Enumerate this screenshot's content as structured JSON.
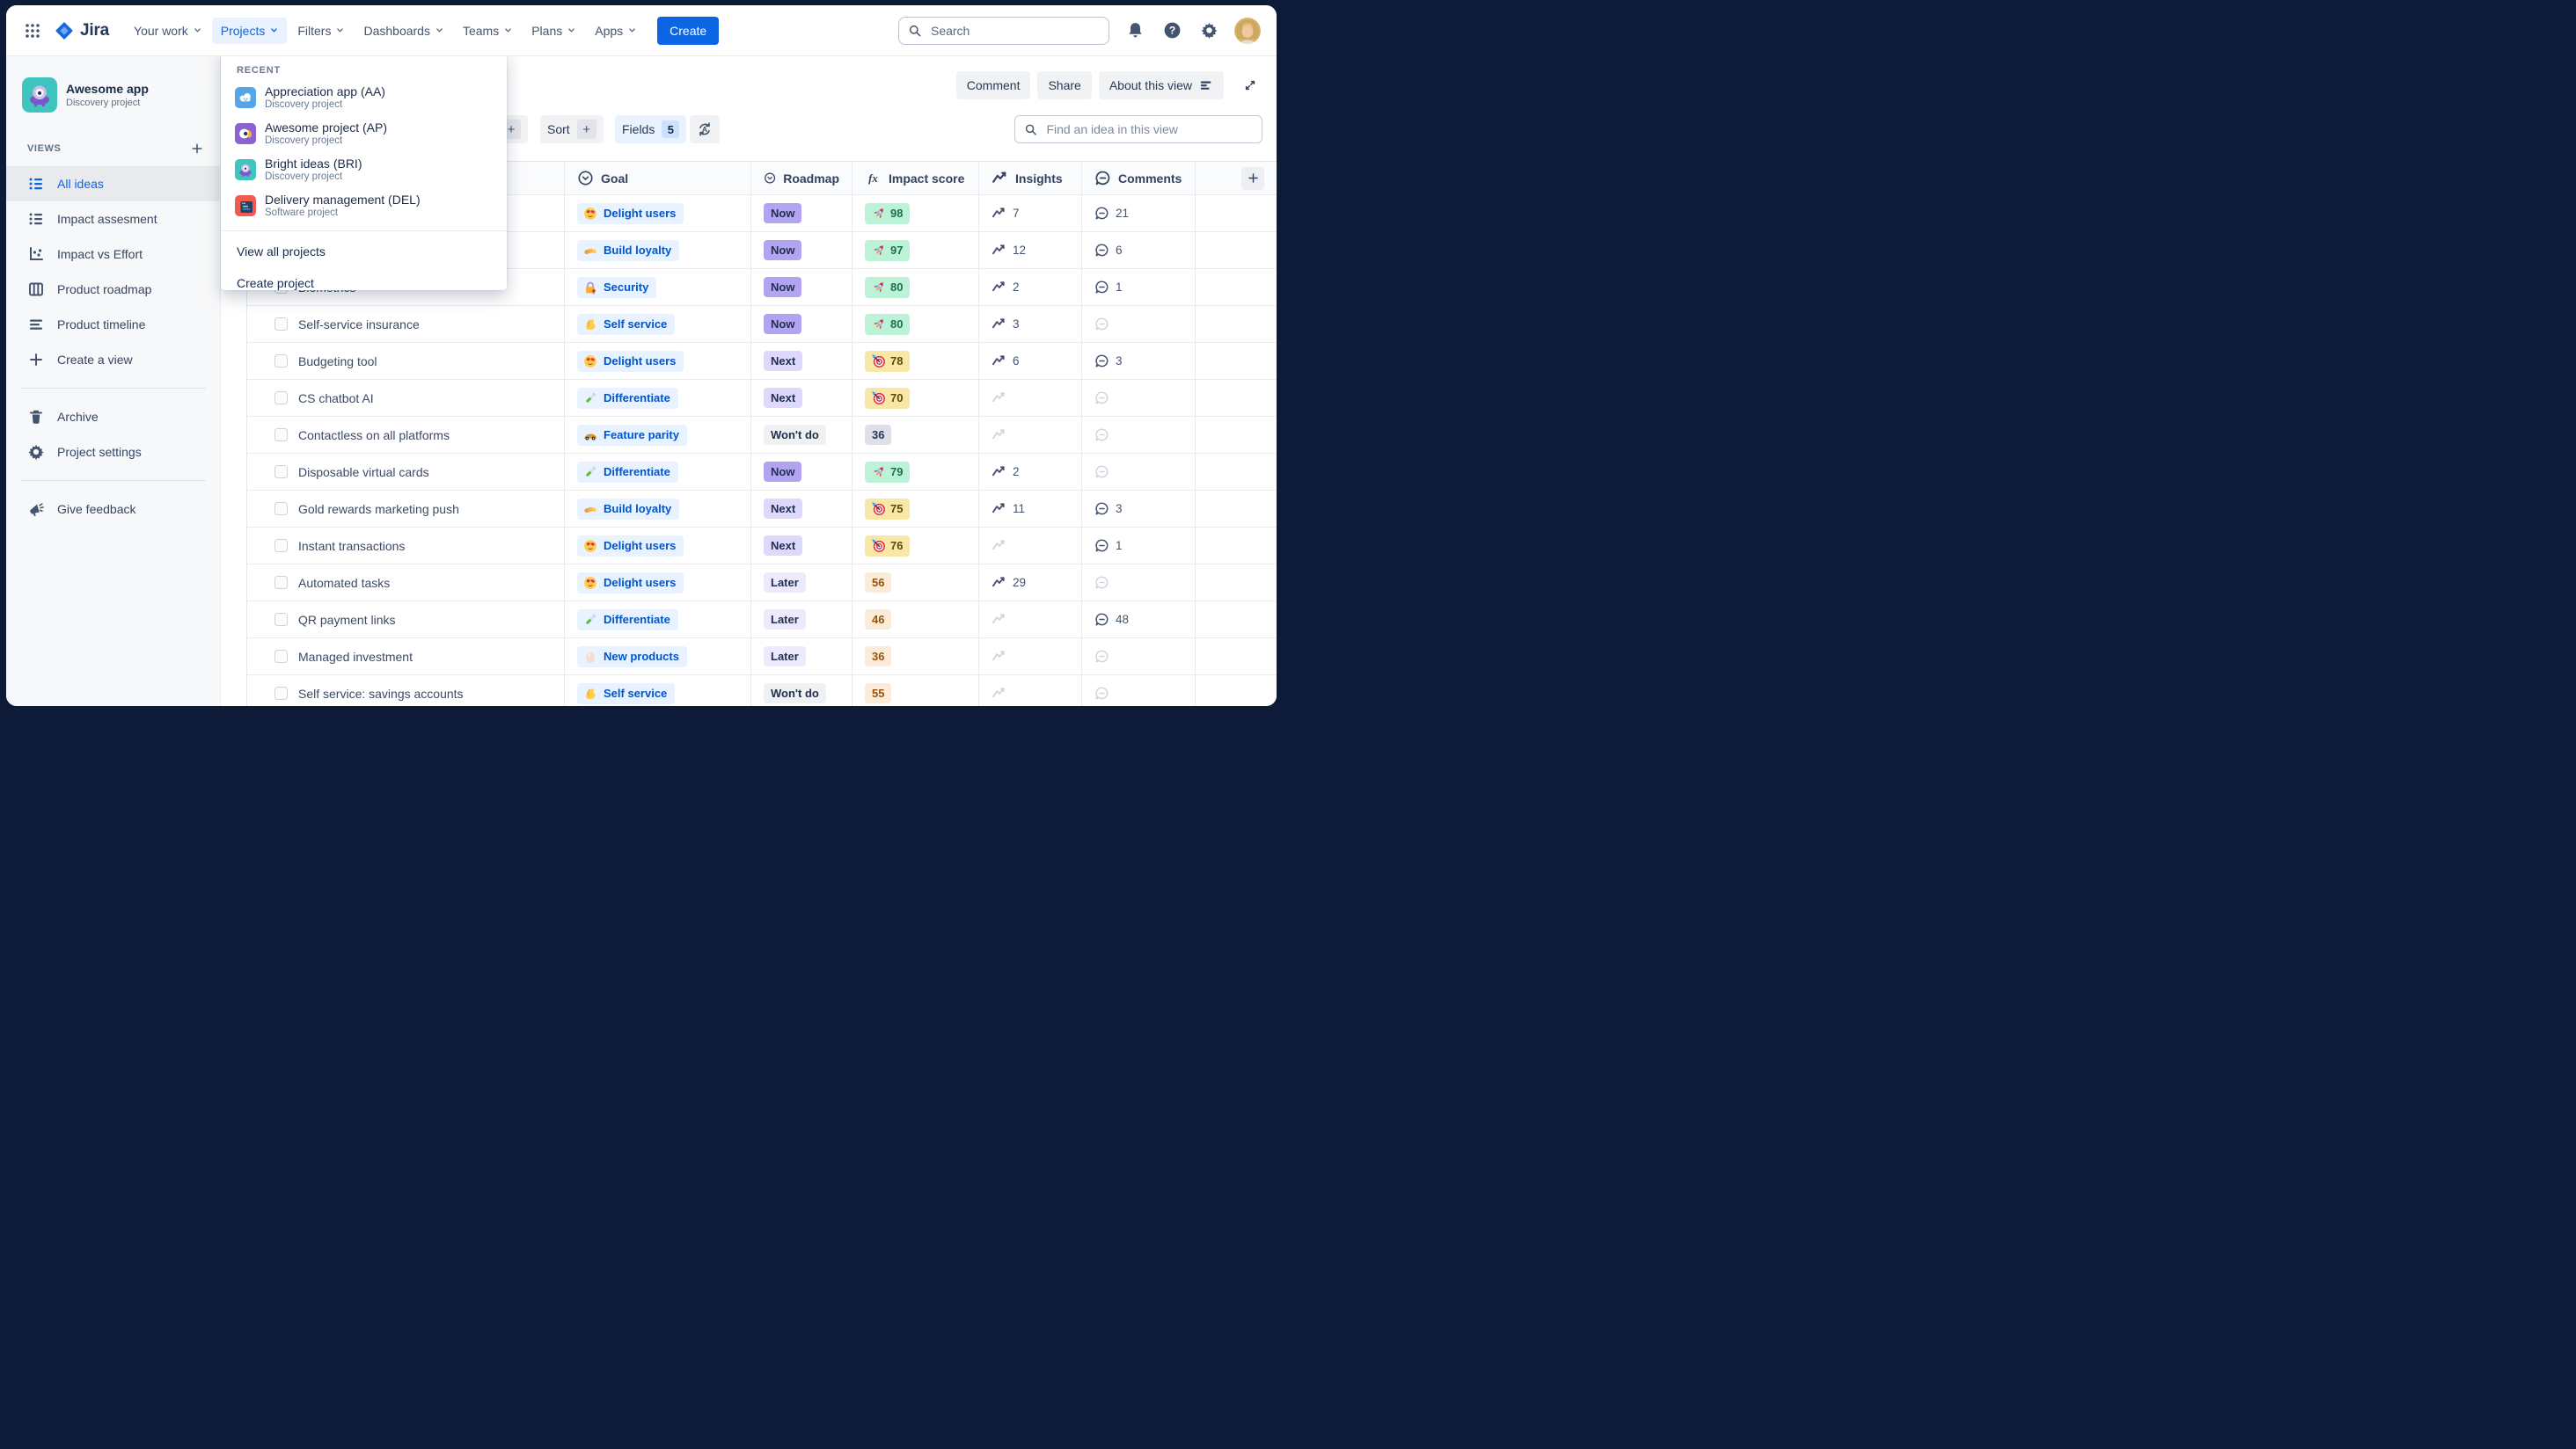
{
  "topbar": {
    "logo_text": "Jira",
    "nav": [
      {
        "label": "Your work",
        "active": false
      },
      {
        "label": "Projects",
        "active": true
      },
      {
        "label": "Filters",
        "active": false
      },
      {
        "label": "Dashboards",
        "active": false
      },
      {
        "label": "Teams",
        "active": false
      },
      {
        "label": "Plans",
        "active": false
      },
      {
        "label": "Apps",
        "active": false
      }
    ],
    "create_label": "Create",
    "search_placeholder": "Search",
    "icons": [
      "apps-grid-icon",
      "notifications-bell-icon",
      "help-icon",
      "settings-gear-icon",
      "user-avatar"
    ]
  },
  "projects_menu": {
    "section_label": "RECENT",
    "items": [
      {
        "name": "Appreciation app (AA)",
        "type": "Discovery project",
        "icon": "appreciation-app-icon"
      },
      {
        "name": "Awesome project (AP)",
        "type": "Discovery project",
        "icon": "awesome-project-icon"
      },
      {
        "name": "Bright ideas (BRI)",
        "type": "Discovery project",
        "icon": "bright-ideas-icon"
      },
      {
        "name": "Delivery management (DEL)",
        "type": "Software project",
        "icon": "delivery-management-icon"
      }
    ],
    "footer_items": [
      "View all projects",
      "Create project"
    ]
  },
  "sidebar": {
    "project": {
      "name": "Awesome app",
      "type": "Discovery project",
      "icon": "alien-app-icon"
    },
    "views_label": "VIEWS",
    "views": [
      {
        "label": "All ideas",
        "icon": "list",
        "active": true
      },
      {
        "label": "Impact assesment",
        "icon": "list",
        "active": false
      },
      {
        "label": "Impact vs Effort",
        "icon": "scatter",
        "active": false
      },
      {
        "label": "Product roadmap",
        "icon": "board",
        "active": false
      },
      {
        "label": "Product timeline",
        "icon": "timeline",
        "active": false
      },
      {
        "label": "Create a view",
        "icon": "plus",
        "active": false
      }
    ],
    "tools": [
      {
        "label": "Archive",
        "icon": "trash"
      },
      {
        "label": "Project settings",
        "icon": "gear"
      }
    ],
    "feedback_label": "Give feedback"
  },
  "view_header": {
    "buttons": [
      "Comment",
      "Share",
      "About this view"
    ]
  },
  "toolbar": {
    "partial_chip": "+",
    "sort_label": "Sort",
    "sort_plus": "+",
    "fields_label": "Fields",
    "fields_count": "5",
    "find_placeholder": "Find an idea in this view"
  },
  "table": {
    "columns": [
      {
        "label": "",
        "icon": null
      },
      {
        "label": "Goal",
        "icon": "chevron-circle"
      },
      {
        "label": "Roadmap",
        "icon": "chevron-circle"
      },
      {
        "label": "Impact score",
        "icon": "fx"
      },
      {
        "label": "Insights",
        "icon": "trend"
      },
      {
        "label": "Comments",
        "icon": "comment"
      },
      {
        "label": "+",
        "icon": "plus"
      }
    ],
    "rows": [
      {
        "name": "",
        "goal": {
          "icon": "delight",
          "label": "Delight users"
        },
        "roadmap": {
          "label": "Now",
          "variant": "now"
        },
        "impact": {
          "icon": "rocket",
          "value": "98",
          "variant": "green"
        },
        "insights": "7",
        "comments": "21"
      },
      {
        "name": "",
        "goal": {
          "icon": "handshake",
          "label": "Build loyalty"
        },
        "roadmap": {
          "label": "Now",
          "variant": "now"
        },
        "impact": {
          "icon": "rocket",
          "value": "97",
          "variant": "green"
        },
        "insights": "12",
        "comments": "6"
      },
      {
        "name": "Biometrics",
        "goal": {
          "icon": "lock",
          "label": "Security"
        },
        "roadmap": {
          "label": "Now",
          "variant": "now"
        },
        "impact": {
          "icon": "rocket",
          "value": "80",
          "variant": "green"
        },
        "insights": "2",
        "comments": "1"
      },
      {
        "name": "Self-service insurance",
        "goal": {
          "icon": "biceps",
          "label": "Self service"
        },
        "roadmap": {
          "label": "Now",
          "variant": "now"
        },
        "impact": {
          "icon": "rocket",
          "value": "80",
          "variant": "green"
        },
        "insights": "3",
        "comments": null
      },
      {
        "name": "Budgeting tool",
        "goal": {
          "icon": "delight",
          "label": "Delight users"
        },
        "roadmap": {
          "label": "Next",
          "variant": "next"
        },
        "impact": {
          "icon": "target",
          "value": "78",
          "variant": "yellow"
        },
        "insights": "6",
        "comments": "3"
      },
      {
        "name": "CS chatbot AI",
        "goal": {
          "icon": "testtube",
          "label": "Differentiate"
        },
        "roadmap": {
          "label": "Next",
          "variant": "next"
        },
        "impact": {
          "icon": "target",
          "value": "70",
          "variant": "yellow"
        },
        "insights": null,
        "comments": null
      },
      {
        "name": "Contactless on all platforms",
        "goal": {
          "icon": "racecar",
          "label": "Feature parity"
        },
        "roadmap": {
          "label": "Won't do",
          "variant": "wontdo"
        },
        "impact": {
          "icon": null,
          "value": "36",
          "variant": "gray"
        },
        "insights": null,
        "comments": null
      },
      {
        "name": "Disposable virtual cards",
        "goal": {
          "icon": "testtube",
          "label": "Differentiate"
        },
        "roadmap": {
          "label": "Now",
          "variant": "now"
        },
        "impact": {
          "icon": "rocket",
          "value": "79",
          "variant": "green"
        },
        "insights": "2",
        "comments": null
      },
      {
        "name": "Gold rewards marketing push",
        "goal": {
          "icon": "handshake",
          "label": "Build loyalty"
        },
        "roadmap": {
          "label": "Next",
          "variant": "next"
        },
        "impact": {
          "icon": "target",
          "value": "75",
          "variant": "yellow"
        },
        "insights": "11",
        "comments": "3"
      },
      {
        "name": "Instant transactions",
        "goal": {
          "icon": "delight",
          "label": "Delight users"
        },
        "roadmap": {
          "label": "Next",
          "variant": "next"
        },
        "impact": {
          "icon": "target",
          "value": "76",
          "variant": "yellow"
        },
        "insights": null,
        "comments": "1"
      },
      {
        "name": "Automated tasks",
        "goal": {
          "icon": "delight",
          "label": "Delight users"
        },
        "roadmap": {
          "label": "Later",
          "variant": "later"
        },
        "impact": {
          "icon": null,
          "value": "56",
          "variant": "peach"
        },
        "insights": "29",
        "comments": null
      },
      {
        "name": "QR payment links",
        "goal": {
          "icon": "testtube",
          "label": "Differentiate"
        },
        "roadmap": {
          "label": "Later",
          "variant": "later"
        },
        "impact": {
          "icon": null,
          "value": "46",
          "variant": "peach"
        },
        "insights": null,
        "comments": "48"
      },
      {
        "name": "Managed investment",
        "goal": {
          "icon": "egg",
          "label": "New products"
        },
        "roadmap": {
          "label": "Later",
          "variant": "later"
        },
        "impact": {
          "icon": null,
          "value": "36",
          "variant": "peach"
        },
        "insights": null,
        "comments": null
      },
      {
        "name": "Self service: savings accounts",
        "goal": {
          "icon": "biceps",
          "label": "Self service"
        },
        "roadmap": {
          "label": "Won't do",
          "variant": "wontdo"
        },
        "impact": {
          "icon": null,
          "value": "55",
          "variant": "peach"
        },
        "insights": null,
        "comments": null
      }
    ]
  },
  "colors": {
    "accent_blue": "#0C66E4",
    "frame": "#0D1B38",
    "sidebar_bg": "#F7F8F9",
    "goal_chip_bg": "#E9F2FF",
    "goal_chip_text": "#0055CC",
    "roadmap_now": "#B3A4F3",
    "roadmap_next": "#DFD8FD",
    "roadmap_later": "#EEE9FD",
    "roadmap_wontdo": "#F0F1F3",
    "impact_green_bg": "#BCF2D7",
    "impact_yellow_bg": "#F8E7A6",
    "impact_peach_bg": "#FBEBD9",
    "impact_gray_bg": "#DDE0E6"
  }
}
